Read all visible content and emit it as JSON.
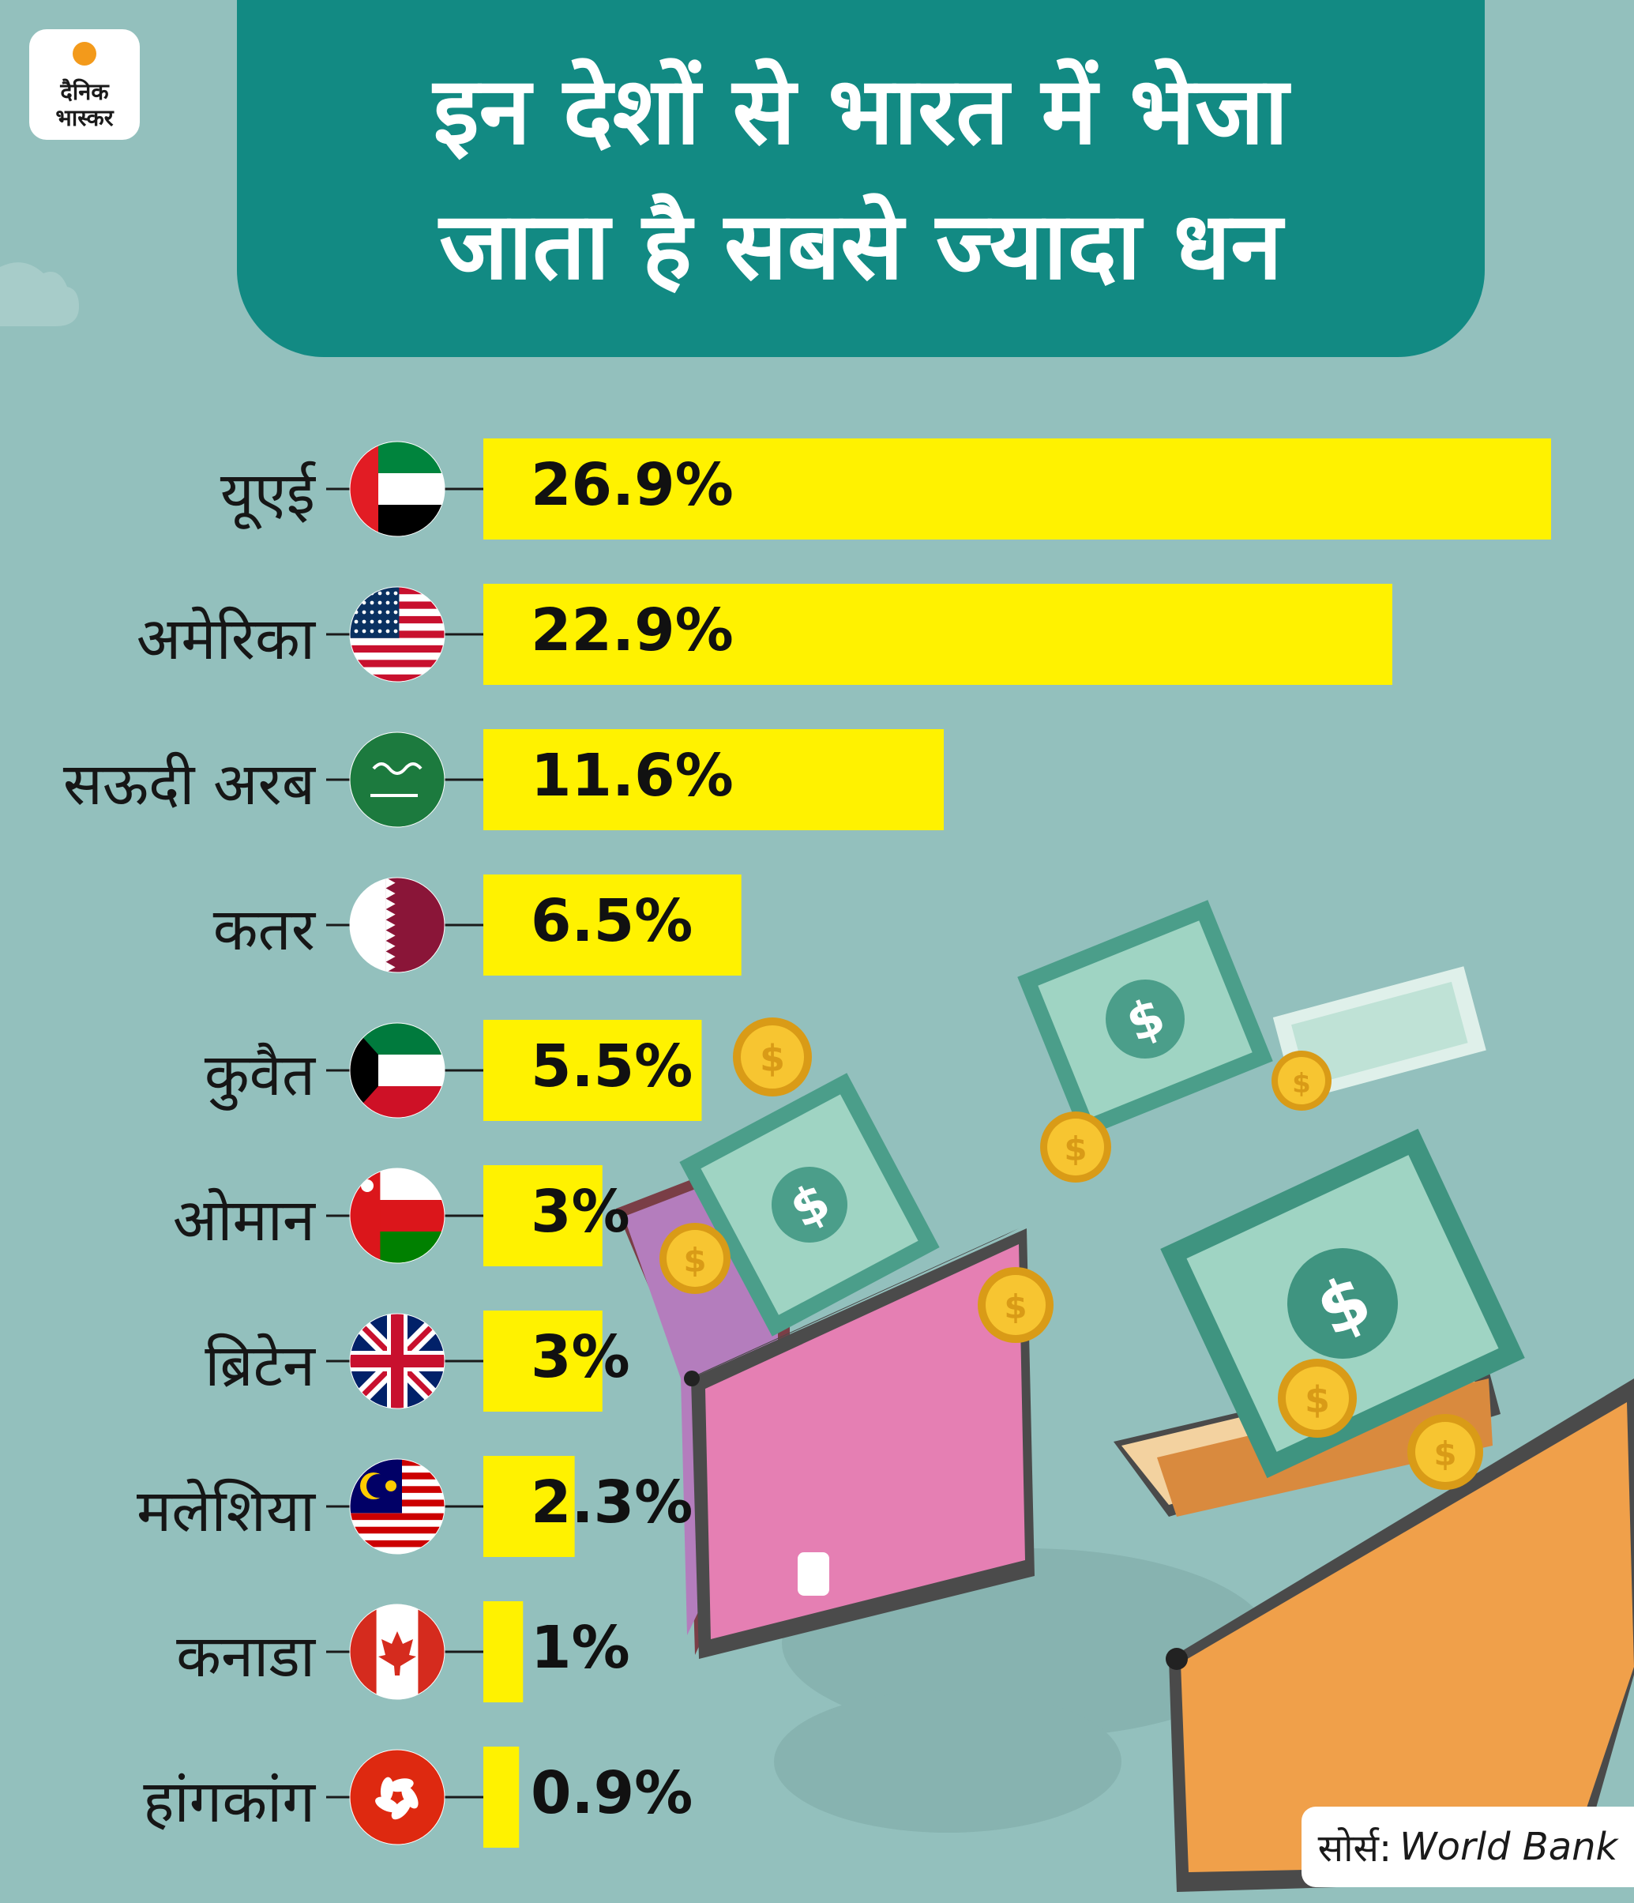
{
  "logo": {
    "line1": "दैनिक",
    "line2": "भास्कर"
  },
  "title": {
    "line1": "इन देशों से भारत में भेजा",
    "line2": "जाता है सबसे ज्यादा धन"
  },
  "source": {
    "label": "सोर्स:",
    "name": "World Bank"
  },
  "colors": {
    "background": "#93c0bd",
    "banner": "#128a83",
    "bar": "#fff200",
    "text": "#111111"
  },
  "chart_data": {
    "type": "bar",
    "orientation": "horizontal",
    "title": "इन देशों से भारत में भेजा जाता है सबसे ज्यादा धन",
    "xlim": [
      0,
      26.9
    ],
    "grid": false,
    "categories": [
      "यूएई",
      "अमेरिका",
      "सऊदी अरब",
      "कतर",
      "कुवैत",
      "ओमान",
      "ब्रिटेन",
      "मलेशिया",
      "कनाडा",
      "हांगकांग"
    ],
    "flags": [
      "uae-flag-icon",
      "usa-flag-icon",
      "saudi-flag-icon",
      "qatar-flag-icon",
      "kuwait-flag-icon",
      "oman-flag-icon",
      "uk-flag-icon",
      "malaysia-flag-icon",
      "canada-flag-icon",
      "hongkong-flag-icon"
    ],
    "values": [
      26.9,
      22.9,
      11.6,
      6.5,
      5.5,
      3,
      3,
      2.3,
      1,
      0.9
    ],
    "labels": [
      "26.9%",
      "22.9%",
      "11.6%",
      "6.5%",
      "5.5%",
      "3%",
      "3%",
      "2.3%",
      "1%",
      "0.9%"
    ]
  }
}
